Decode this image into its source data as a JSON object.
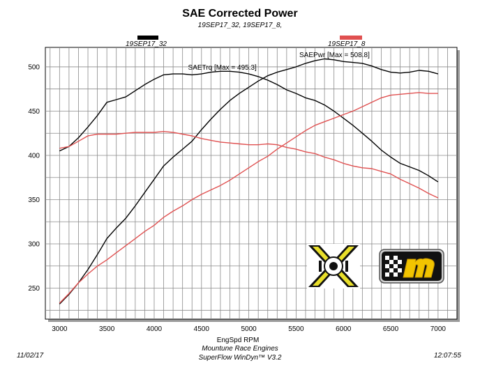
{
  "header": {
    "title": "SAE Corrected Power",
    "subtitle": "19SEP17_32, 19SEP17_8,"
  },
  "legend": {
    "black": {
      "label": "19SEP17_32",
      "color": "#000000"
    },
    "red": {
      "label": "19SEP17_8",
      "color": "#e05050"
    }
  },
  "footer": {
    "date": "11/02/17",
    "company": "Mountune Race Engines",
    "software": "SuperFlow WinDyn™ V3.2",
    "time": "12:07:55"
  },
  "logos": {
    "left": "x-logo",
    "right": "m-logo"
  },
  "chart_data": {
    "type": "line",
    "title": "SAE Corrected Power",
    "xlabel": "EngSpd RPM",
    "ylabel": "",
    "xlim": [
      2850,
      7200
    ],
    "ylim": [
      215,
      522
    ],
    "x_ticks": [
      3000,
      3500,
      4000,
      4500,
      5000,
      5500,
      6000,
      6500,
      7000
    ],
    "y_ticks": [
      250,
      300,
      350,
      400,
      450,
      500
    ],
    "x_tick_labels": [
      "3000",
      "3500",
      "4000",
      "4500",
      "5000",
      "5500",
      "6000",
      "6500",
      "7000"
    ],
    "y_tick_labels": [
      "250",
      "300",
      "350",
      "400",
      "450",
      "500"
    ],
    "grid": true,
    "annotations": [
      {
        "text": "SAETrq [Max = 495.3]",
        "x": 4750,
        "y": 497
      },
      {
        "text": "SAEPwr [Max = 508.8]",
        "x": 5950,
        "y": 508
      }
    ],
    "series": [
      {
        "name": "19SEP17_32 SAETrq",
        "color": "#000000",
        "x": [
          3000,
          3100,
          3200,
          3300,
          3400,
          3500,
          3600,
          3700,
          3800,
          3900,
          4000,
          4100,
          4200,
          4300,
          4400,
          4500,
          4600,
          4700,
          4800,
          4900,
          5000,
          5100,
          5200,
          5300,
          5400,
          5500,
          5600,
          5700,
          5800,
          5900,
          6000,
          6100,
          6200,
          6300,
          6400,
          6500,
          6600,
          6700,
          6800,
          6900,
          7000
        ],
        "y": [
          405,
          410,
          420,
          432,
          445,
          460,
          463,
          466,
          473,
          480,
          486,
          491,
          492,
          492,
          491,
          492,
          494,
          495,
          495,
          494,
          492,
          489,
          485,
          480,
          474,
          470,
          465,
          462,
          457,
          450,
          442,
          434,
          425,
          416,
          406,
          398,
          391,
          387,
          383,
          377,
          370
        ]
      },
      {
        "name": "19SEP17_32 SAEPwr",
        "color": "#000000",
        "x": [
          3000,
          3100,
          3200,
          3300,
          3400,
          3500,
          3600,
          3700,
          3800,
          3900,
          4000,
          4100,
          4200,
          4300,
          4400,
          4500,
          4600,
          4700,
          4800,
          4900,
          5000,
          5100,
          5200,
          5300,
          5400,
          5500,
          5600,
          5700,
          5800,
          5900,
          6000,
          6100,
          6200,
          6300,
          6400,
          6500,
          6600,
          6700,
          6800,
          6900,
          7000
        ],
        "y": [
          232,
          243,
          256,
          271,
          288,
          306,
          318,
          329,
          343,
          358,
          373,
          388,
          398,
          407,
          416,
          429,
          441,
          452,
          462,
          470,
          477,
          484,
          490,
          494,
          497,
          500,
          504,
          507,
          509,
          508,
          506,
          505,
          504,
          501,
          497,
          494,
          493,
          494,
          496,
          495,
          492
        ]
      },
      {
        "name": "19SEP17_8 SAETrq",
        "color": "#e05050",
        "x": [
          3000,
          3100,
          3200,
          3300,
          3400,
          3500,
          3600,
          3700,
          3800,
          3900,
          4000,
          4100,
          4200,
          4300,
          4400,
          4500,
          4600,
          4700,
          4800,
          4900,
          5000,
          5100,
          5200,
          5300,
          5400,
          5500,
          5600,
          5700,
          5800,
          5900,
          6000,
          6100,
          6200,
          6300,
          6400,
          6500,
          6600,
          6700,
          6800,
          6900,
          7000
        ],
        "y": [
          408,
          410,
          416,
          422,
          424,
          424,
          424,
          425,
          426,
          426,
          426,
          427,
          426,
          424,
          422,
          419,
          417,
          415,
          414,
          413,
          412,
          412,
          413,
          412,
          409,
          407,
          404,
          402,
          398,
          395,
          391,
          388,
          386,
          385,
          382,
          379,
          373,
          368,
          363,
          357,
          352
        ]
      },
      {
        "name": "19SEP17_8 SAEPwr",
        "color": "#e05050",
        "x": [
          3000,
          3100,
          3200,
          3300,
          3400,
          3500,
          3600,
          3700,
          3800,
          3900,
          4000,
          4100,
          4200,
          4300,
          4400,
          4500,
          4600,
          4700,
          4800,
          4900,
          5000,
          5100,
          5200,
          5300,
          5400,
          5500,
          5600,
          5700,
          5800,
          5900,
          6000,
          6100,
          6200,
          6300,
          6400,
          6500,
          6600,
          6700,
          6800,
          6900,
          7000
        ],
        "y": [
          233,
          244,
          256,
          266,
          275,
          282,
          290,
          298,
          306,
          314,
          321,
          330,
          337,
          343,
          350,
          356,
          361,
          366,
          372,
          379,
          386,
          393,
          399,
          407,
          414,
          421,
          428,
          434,
          438,
          442,
          446,
          450,
          455,
          460,
          465,
          468,
          469,
          470,
          471,
          470,
          470
        ]
      }
    ]
  }
}
